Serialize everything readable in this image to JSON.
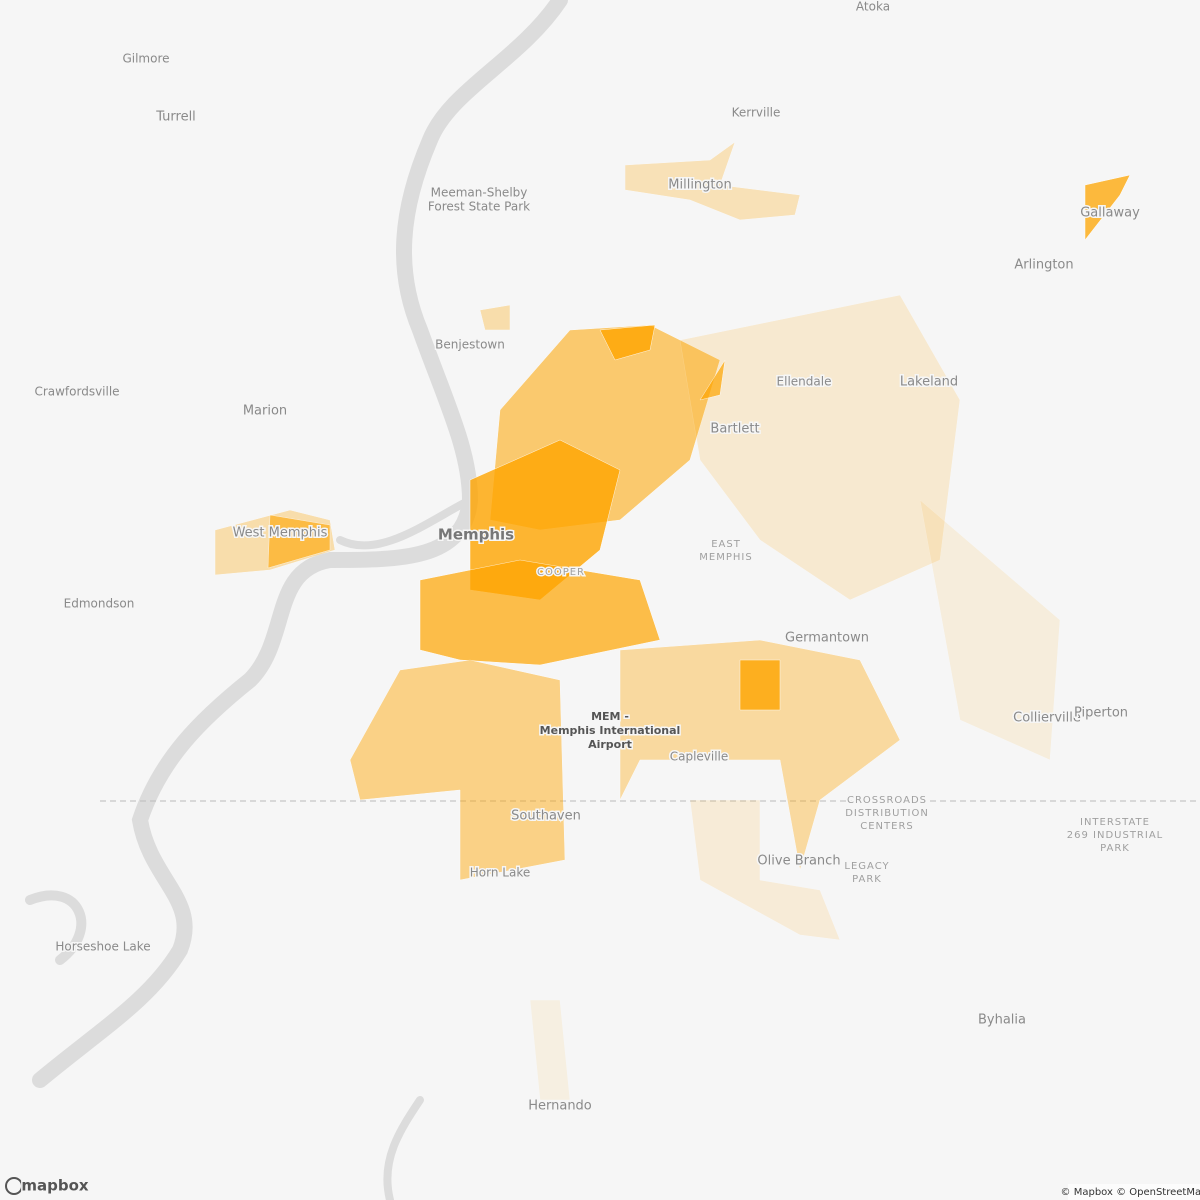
{
  "places": [
    {
      "lines": [
        "Atoka"
      ]
    },
    {
      "lines": [
        "Gilmore"
      ]
    },
    {
      "lines": [
        "Turrell"
      ]
    },
    {
      "lines": [
        "Kerrville"
      ]
    },
    {
      "lines": [
        "Millington"
      ]
    },
    {
      "lines": [
        "Meeman-Shelby",
        "Forest State Park"
      ]
    },
    {
      "lines": [
        "Gallaway"
      ]
    },
    {
      "lines": [
        "Arlington"
      ]
    },
    {
      "lines": [
        "Benjestown"
      ]
    },
    {
      "lines": [
        "Ellendale"
      ]
    },
    {
      "lines": [
        "Lakeland"
      ]
    },
    {
      "lines": [
        "Crawfordsville"
      ]
    },
    {
      "lines": [
        "Marion"
      ]
    },
    {
      "lines": [
        "Bartlett"
      ]
    },
    {
      "lines": [
        "Memphis"
      ]
    },
    {
      "lines": [
        "West Memphis"
      ]
    },
    {
      "lines": [
        "EAST",
        "MEMPHIS"
      ]
    },
    {
      "lines": [
        "COOPER"
      ]
    },
    {
      "lines": [
        "Edmondson"
      ]
    },
    {
      "lines": [
        "Germantown"
      ]
    },
    {
      "lines": [
        "Collierville"
      ]
    },
    {
      "lines": [
        "Piperton"
      ]
    },
    {
      "lines": [
        "MEM -",
        "Memphis International",
        "Airport"
      ]
    },
    {
      "lines": [
        "Capleville"
      ]
    },
    {
      "lines": [
        "CROSSROADS",
        "DISTRIBUTION",
        "CENTERS"
      ]
    },
    {
      "lines": [
        "INTERSTATE",
        "269 INDUSTRIAL",
        "PARK"
      ]
    },
    {
      "lines": [
        "Southaven"
      ]
    },
    {
      "lines": [
        "Olive Branch"
      ]
    },
    {
      "lines": [
        "LEGACY",
        "PARK"
      ]
    },
    {
      "lines": [
        "Horn Lake"
      ]
    },
    {
      "lines": [
        "Horseshoe Lake"
      ]
    },
    {
      "lines": [
        "Byhalia"
      ]
    },
    {
      "lines": [
        "Hernando"
      ]
    }
  ],
  "attribution": "© Mapbox © OpenStreetMap",
  "logo": "mapbox"
}
